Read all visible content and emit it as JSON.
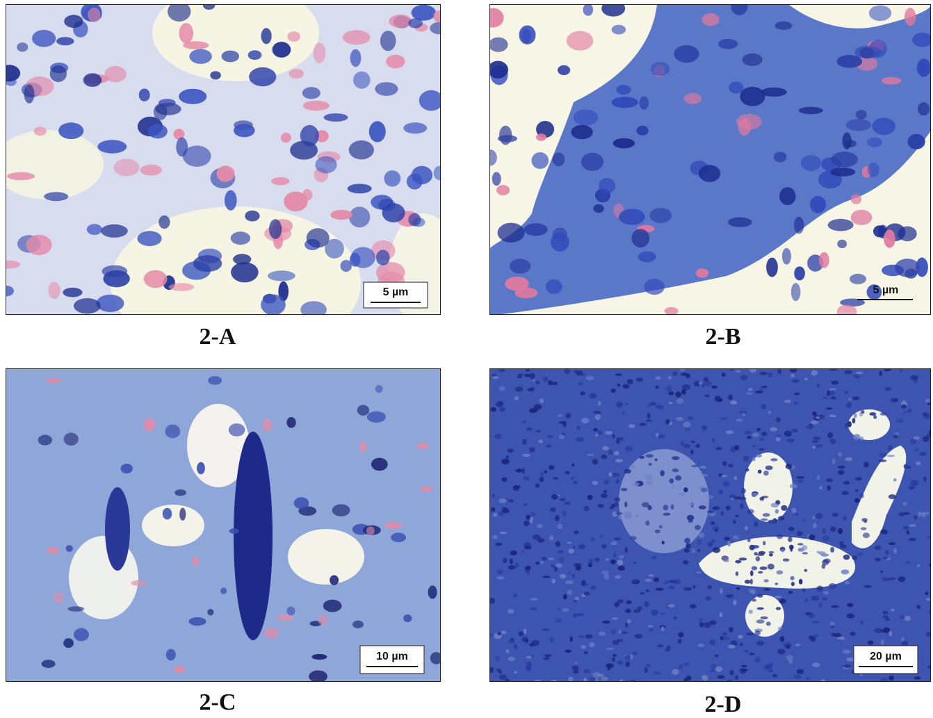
{
  "panels": [
    {
      "label": "2-A",
      "scale_bar": "5 µm"
    },
    {
      "label": "2-B",
      "scale_bar": "5 µm"
    },
    {
      "label": "2-C",
      "scale_bar": "10 µm"
    },
    {
      "label": "2-D",
      "scale_bar": "20 µm"
    }
  ]
}
